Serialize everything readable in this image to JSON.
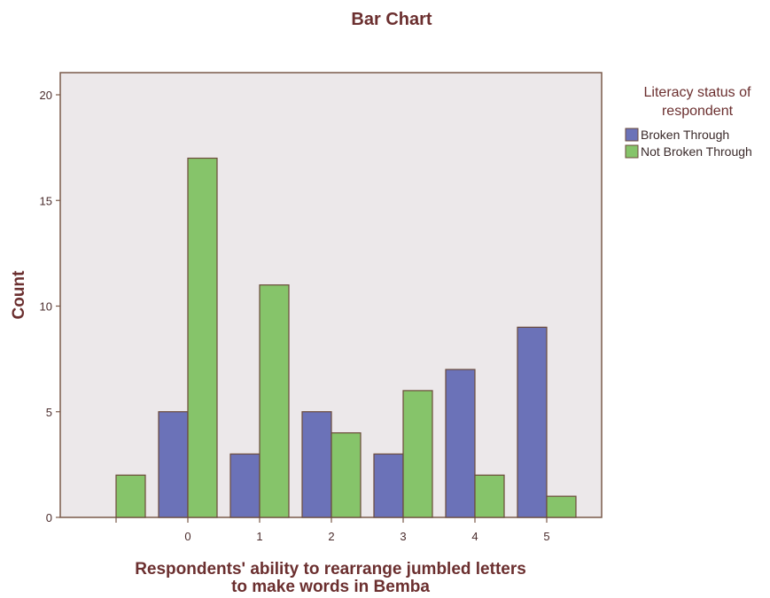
{
  "chart_data": {
    "type": "bar",
    "title": "Bar Chart",
    "xlabel": [
      "Respondents' ability to rearrange jumbled letters",
      "to make words in Bemba"
    ],
    "ylabel": "Count",
    "categories": [
      "",
      "0",
      "1",
      "2",
      "3",
      "4",
      "5"
    ],
    "series": [
      {
        "name": "Broken Through",
        "color": "#6b72b8",
        "values": [
          0,
          5,
          3,
          5,
          3,
          7,
          9
        ]
      },
      {
        "name": "Not Broken Through",
        "color": "#86c46a",
        "values": [
          2,
          17,
          11,
          4,
          6,
          2,
          1
        ]
      }
    ],
    "ylim": [
      0,
      21
    ],
    "yticks": [
      0,
      5,
      10,
      15,
      20
    ],
    "legend": {
      "title": [
        "Literacy status of",
        "respondent"
      ],
      "placement": "right"
    },
    "plot_background": "#ece8ea",
    "bar_outline": "#6b4a3a",
    "axis_color": "#7a5a4a",
    "grid": false
  }
}
